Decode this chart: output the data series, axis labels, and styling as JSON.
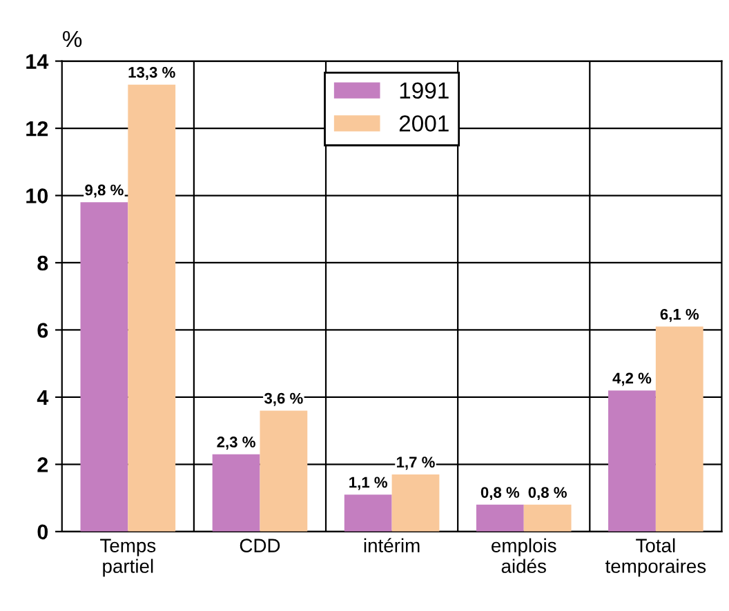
{
  "chart_data": {
    "type": "bar",
    "ylabel": "%",
    "categories": [
      "Temps\npartiel",
      "CDD",
      "intérim",
      "emplois\naidés",
      "Total\ntemporaires"
    ],
    "series": [
      {
        "name": "1991",
        "color": "#c47ec0",
        "values": [
          9.8,
          2.3,
          1.1,
          0.8,
          4.2
        ],
        "value_labels": [
          "9,8 %",
          "2,3 %",
          "1,1 %",
          "0,8 %",
          "4,2 %"
        ]
      },
      {
        "name": "2001",
        "color": "#f9c89a",
        "values": [
          13.3,
          3.6,
          1.7,
          0.8,
          6.1
        ],
        "value_labels": [
          "13,3 %",
          "3,6 %",
          "1,7 %",
          "0,8 %",
          "6,1 %"
        ]
      }
    ],
    "ylim": [
      0,
      14
    ],
    "yticks": [
      0,
      2,
      4,
      6,
      8,
      10,
      12,
      14
    ],
    "grid": true,
    "legend": "top"
  }
}
